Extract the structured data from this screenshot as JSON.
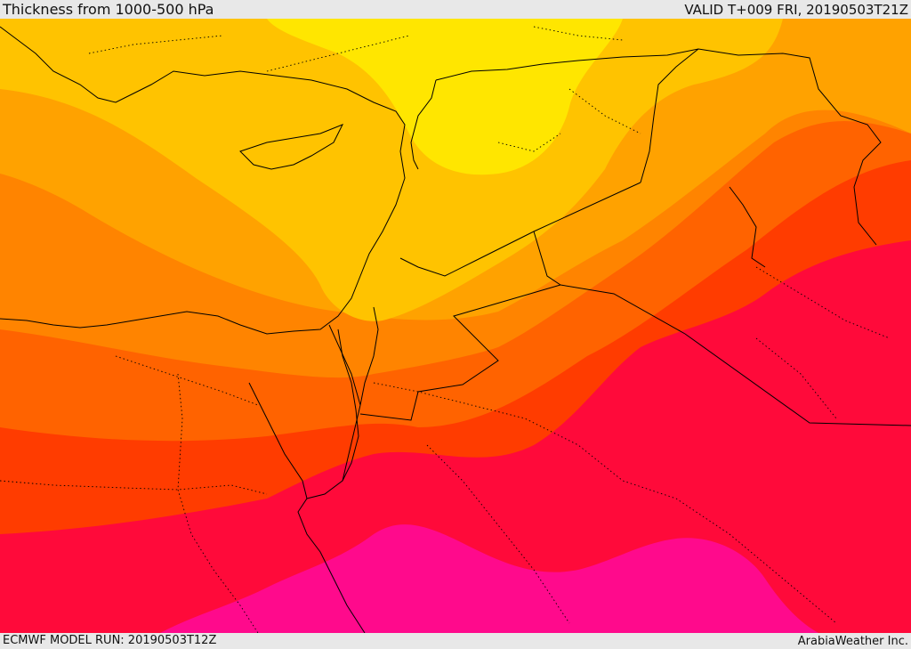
{
  "header": {
    "title": "Thickness from 1000-500 hPa",
    "valid": "VALID T+009 FRI, 20190503T21Z"
  },
  "footer": {
    "model_run": "ECMWF MODEL RUN: 20190503T12Z",
    "credit": "ArabiaWeather Inc."
  },
  "map": {
    "field": "1000-500 hPa thickness",
    "palette": [
      "#ffe600",
      "#ffc300",
      "#ffa200",
      "#ff8400",
      "#ff6300",
      "#ff3c00",
      "#ff0a3a",
      "#ff0a8c"
    ],
    "coastline_color": "#000000",
    "boundary_style": "dotted"
  }
}
